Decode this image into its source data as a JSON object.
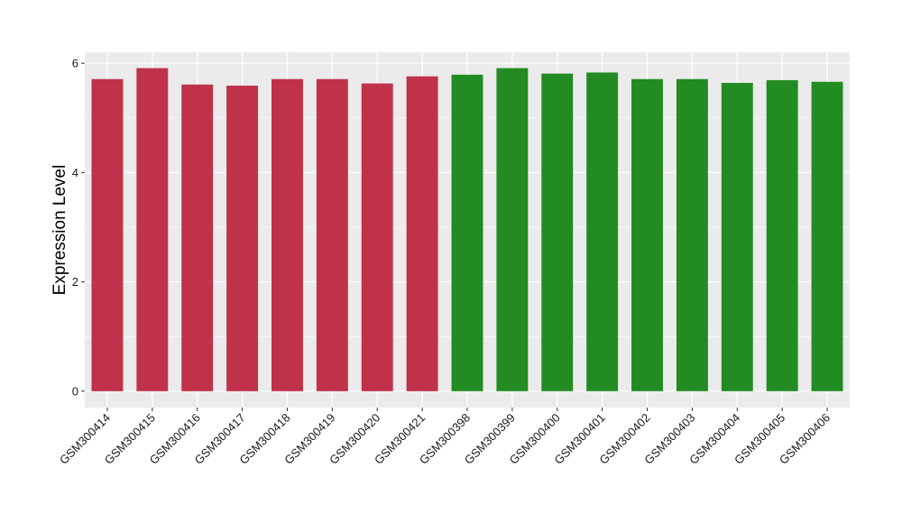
{
  "chart_data": {
    "type": "bar",
    "title": "",
    "xlabel": "",
    "ylabel": "Expression Level",
    "ylim": [
      -0.3,
      6.2
    ],
    "yticks": [
      0,
      2,
      4,
      6
    ],
    "categories": [
      "GSM300414",
      "GSM300415",
      "GSM300416",
      "GSM300417",
      "GSM300418",
      "GSM300419",
      "GSM300420",
      "GSM300421",
      "GSM300398",
      "GSM300399",
      "GSM300400",
      "GSM300401",
      "GSM300402",
      "GSM300403",
      "GSM300404",
      "GSM300405",
      "GSM300406"
    ],
    "values": [
      5.71,
      5.91,
      5.61,
      5.59,
      5.71,
      5.71,
      5.63,
      5.76,
      5.79,
      5.91,
      5.81,
      5.83,
      5.71,
      5.71,
      5.64,
      5.69,
      5.66
    ],
    "bar_colors": [
      "#c0314a",
      "#c0314a",
      "#c0314a",
      "#c0314a",
      "#c0314a",
      "#c0314a",
      "#c0314a",
      "#c0314a",
      "#228b22",
      "#228b22",
      "#228b22",
      "#228b22",
      "#228b22",
      "#228b22",
      "#228b22",
      "#228b22",
      "#228b22"
    ],
    "grid": true,
    "panel_background": "#ebebeb",
    "gridline_color": "#ffffff"
  }
}
